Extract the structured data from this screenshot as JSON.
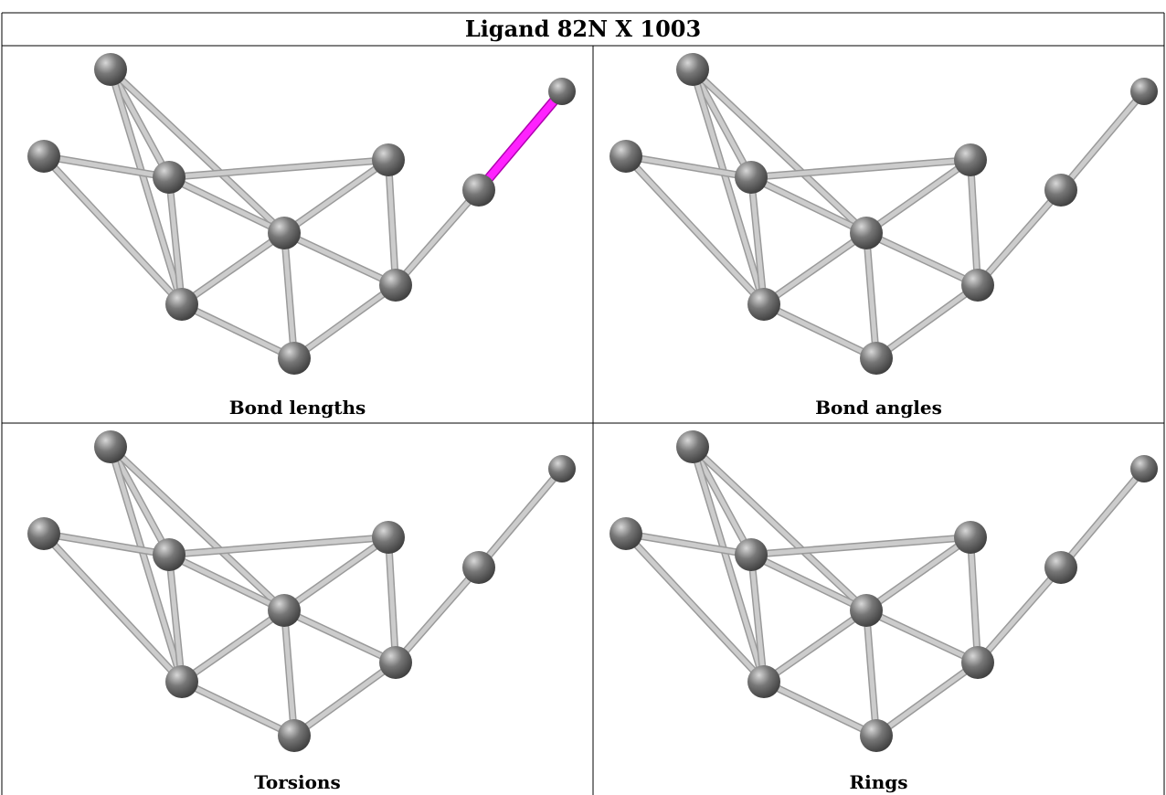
{
  "title": "Ligand 82N X 1003",
  "panels": [
    {
      "label": "Bond lengths",
      "highlight": "#ff22ff"
    },
    {
      "label": "Bond angles",
      "highlight": null
    },
    {
      "label": "Torsions",
      "highlight": null
    },
    {
      "label": "Rings",
      "highlight": null
    }
  ],
  "colors": {
    "bond": "#cccccc",
    "atom": "#777777",
    "highlight": "#ff22ff"
  }
}
